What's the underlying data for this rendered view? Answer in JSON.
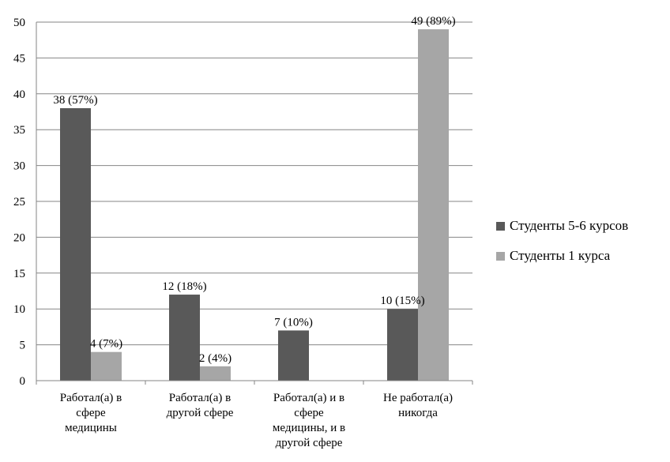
{
  "chart_data": {
    "type": "bar",
    "categories": [
      [
        "Работал(а) в",
        "сфере",
        "медицины"
      ],
      [
        "Работал(а) в",
        "другой сфере"
      ],
      [
        "Работал(а) и в",
        "сфере",
        "медицины, и в",
        "другой сфере"
      ],
      [
        "Не работал(а)",
        "никогда"
      ]
    ],
    "series": [
      {
        "name": "Студенты 5-6 курсов",
        "color": "#595959",
        "values": [
          38,
          12,
          7,
          10
        ],
        "labels": [
          "38 (57%)",
          "12 (18%)",
          "7 (10%)",
          "10 (15%)"
        ]
      },
      {
        "name": "Студенты 1 курса",
        "color": "#a6a6a6",
        "values": [
          4,
          2,
          0,
          49
        ],
        "labels": [
          "4 (7%)",
          "2 (4%)",
          "",
          "49 (89%)"
        ]
      }
    ],
    "ylim": [
      0,
      50
    ],
    "yticks": [
      0,
      5,
      10,
      15,
      20,
      25,
      30,
      35,
      40,
      45,
      50
    ],
    "grid": true,
    "legend": "right"
  }
}
